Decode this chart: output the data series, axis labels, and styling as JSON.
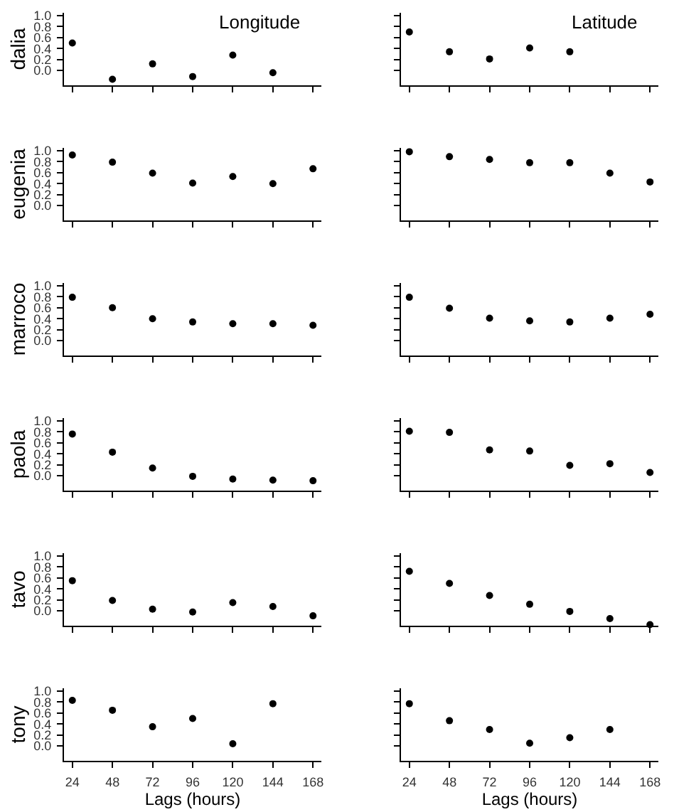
{
  "chart_data": [
    {
      "type": "scatter",
      "title": "Longitude",
      "ylabel": "dalia",
      "x": [
        24,
        48,
        72,
        96,
        120,
        144
      ],
      "values": [
        0.5,
        -0.16,
        0.12,
        -0.11,
        0.28,
        -0.04
      ],
      "color": "#000000",
      "marker": "circle",
      "xlim": [
        19,
        173
      ],
      "xticks": [
        24,
        48,
        72,
        96,
        120,
        144,
        168
      ],
      "ylim": [
        -0.27,
        1.05
      ],
      "yticks": [
        {
          "value": 0,
          "label": "0.0"
        },
        {
          "value": 0.2,
          "label": "0.2"
        },
        {
          "value": 0.4,
          "label": "0.4"
        },
        {
          "value": 0.6,
          "label": "0.6"
        },
        {
          "value": 0.8,
          "label": "0.8"
        },
        {
          "value": 1,
          "label": "1.0"
        }
      ],
      "tick_labels": "y"
    },
    {
      "type": "scatter",
      "title": "Latitude",
      "x": [
        24,
        48,
        72,
        96,
        120
      ],
      "values": [
        0.7,
        0.34,
        0.21,
        0.41,
        0.34
      ],
      "color": "#000000",
      "marker": "circle",
      "xlim": [
        19,
        173
      ],
      "xticks": [
        24,
        48,
        72,
        96,
        120,
        144,
        168
      ],
      "ylim": [
        -0.27,
        1.05
      ],
      "yticks": [
        0,
        0.2,
        0.4,
        0.6,
        0.8,
        1
      ],
      "tick_labels": false
    },
    {
      "type": "scatter",
      "ylabel": "eugenia",
      "x": [
        24,
        48,
        72,
        96,
        120,
        144,
        168
      ],
      "values": [
        0.92,
        0.79,
        0.59,
        0.41,
        0.53,
        0.4,
        0.67
      ],
      "color": "#000000",
      "marker": "circle",
      "xlim": [
        19,
        173
      ],
      "xticks": [
        24,
        48,
        72,
        96,
        120,
        144,
        168
      ],
      "ylim": [
        -0.27,
        1.05
      ],
      "yticks": [
        {
          "value": 0,
          "label": "0.0"
        },
        {
          "value": 0.2,
          "label": "0.2"
        },
        {
          "value": 0.4,
          "label": "0.4"
        },
        {
          "value": 0.6,
          "label": "0.6"
        },
        {
          "value": 0.8,
          "label": "0.8"
        },
        {
          "value": 1,
          "label": "1.0"
        }
      ],
      "tick_labels": "y"
    },
    {
      "type": "scatter",
      "x": [
        24,
        48,
        72,
        96,
        120,
        144,
        168
      ],
      "values": [
        0.98,
        0.89,
        0.84,
        0.78,
        0.78,
        0.59,
        0.43
      ],
      "color": "#000000",
      "marker": "circle",
      "xlim": [
        19,
        173
      ],
      "xticks": [
        24,
        48,
        72,
        96,
        120,
        144,
        168
      ],
      "ylim": [
        -0.27,
        1.05
      ],
      "yticks": [
        0,
        0.2,
        0.4,
        0.6,
        0.8,
        1
      ],
      "tick_labels": false
    },
    {
      "type": "scatter",
      "ylabel": "marroco",
      "x": [
        24,
        48,
        72,
        96,
        120,
        144,
        168
      ],
      "values": [
        0.79,
        0.6,
        0.4,
        0.34,
        0.31,
        0.31,
        0.28
      ],
      "color": "#000000",
      "marker": "circle",
      "xlim": [
        19,
        173
      ],
      "xticks": [
        24,
        48,
        72,
        96,
        120,
        144,
        168
      ],
      "ylim": [
        -0.27,
        1.05
      ],
      "yticks": [
        {
          "value": 0,
          "label": "0.0"
        },
        {
          "value": 0.2,
          "label": "0.2"
        },
        {
          "value": 0.4,
          "label": "0.4"
        },
        {
          "value": 0.6,
          "label": "0.6"
        },
        {
          "value": 0.8,
          "label": "0.8"
        },
        {
          "value": 1,
          "label": "1.0"
        }
      ],
      "tick_labels": "y"
    },
    {
      "type": "scatter",
      "x": [
        24,
        48,
        72,
        96,
        120,
        144,
        168
      ],
      "values": [
        0.79,
        0.59,
        0.41,
        0.36,
        0.34,
        0.41,
        0.48
      ],
      "color": "#000000",
      "marker": "circle",
      "xlim": [
        19,
        173
      ],
      "xticks": [
        24,
        48,
        72,
        96,
        120,
        144,
        168
      ],
      "ylim": [
        -0.27,
        1.05
      ],
      "yticks": [
        0,
        0.2,
        0.4,
        0.6,
        0.8,
        1
      ],
      "tick_labels": false
    },
    {
      "type": "scatter",
      "ylabel": "paola",
      "x": [
        24,
        48,
        72,
        96,
        120,
        144,
        168
      ],
      "values": [
        0.76,
        0.43,
        0.14,
        -0.01,
        -0.06,
        -0.08,
        -0.09
      ],
      "color": "#000000",
      "marker": "circle",
      "xlim": [
        19,
        173
      ],
      "xticks": [
        24,
        48,
        72,
        96,
        120,
        144,
        168
      ],
      "ylim": [
        -0.27,
        1.05
      ],
      "yticks": [
        {
          "value": 0,
          "label": "0.0"
        },
        {
          "value": 0.2,
          "label": "0.2"
        },
        {
          "value": 0.4,
          "label": "0.4"
        },
        {
          "value": 0.6,
          "label": "0.6"
        },
        {
          "value": 0.8,
          "label": "0.8"
        },
        {
          "value": 1,
          "label": "1.0"
        }
      ],
      "tick_labels": "y"
    },
    {
      "type": "scatter",
      "x": [
        24,
        48,
        72,
        96,
        120,
        144,
        168
      ],
      "values": [
        0.81,
        0.79,
        0.47,
        0.45,
        0.19,
        0.22,
        0.06
      ],
      "color": "#000000",
      "marker": "circle",
      "xlim": [
        19,
        173
      ],
      "xticks": [
        24,
        48,
        72,
        96,
        120,
        144,
        168
      ],
      "ylim": [
        -0.27,
        1.05
      ],
      "yticks": [
        0,
        0.2,
        0.4,
        0.6,
        0.8,
        1
      ],
      "tick_labels": false
    },
    {
      "type": "scatter",
      "ylabel": "tavo",
      "x": [
        24,
        48,
        72,
        96,
        120,
        144,
        168
      ],
      "values": [
        0.55,
        0.19,
        0.03,
        -0.02,
        0.15,
        0.08,
        -0.09
      ],
      "color": "#000000",
      "marker": "circle",
      "xlim": [
        19,
        173
      ],
      "xticks": [
        24,
        48,
        72,
        96,
        120,
        144,
        168
      ],
      "ylim": [
        -0.27,
        1.05
      ],
      "yticks": [
        {
          "value": 0,
          "label": "0.0"
        },
        {
          "value": 0.2,
          "label": "0.2"
        },
        {
          "value": 0.4,
          "label": "0.4"
        },
        {
          "value": 0.6,
          "label": "0.6"
        },
        {
          "value": 0.8,
          "label": "0.8"
        },
        {
          "value": 1,
          "label": "1.0"
        }
      ],
      "tick_labels": "y"
    },
    {
      "type": "scatter",
      "x": [
        24,
        48,
        72,
        96,
        120,
        144,
        168
      ],
      "values": [
        0.72,
        0.5,
        0.28,
        0.12,
        -0.01,
        -0.14,
        -0.25
      ],
      "color": "#000000",
      "marker": "circle",
      "xlim": [
        19,
        173
      ],
      "xticks": [
        24,
        48,
        72,
        96,
        120,
        144,
        168
      ],
      "ylim": [
        -0.27,
        1.05
      ],
      "yticks": [
        0,
        0.2,
        0.4,
        0.6,
        0.8,
        1
      ],
      "tick_labels": false
    },
    {
      "type": "scatter",
      "ylabel": "tony",
      "xlabel": "Lags (hours)",
      "x": [
        24,
        48,
        72,
        96,
        120,
        144
      ],
      "values": [
        0.83,
        0.65,
        0.35,
        0.5,
        0.04,
        0.77
      ],
      "color": "#000000",
      "marker": "circle",
      "xlim": [
        19,
        173
      ],
      "xticks": [
        24,
        48,
        72,
        96,
        120,
        144,
        168
      ],
      "ylim": [
        -0.27,
        1.05
      ],
      "yticks": [
        {
          "value": 0,
          "label": "0.0"
        },
        {
          "value": 0.2,
          "label": "0.2"
        },
        {
          "value": 0.4,
          "label": "0.4"
        },
        {
          "value": 0.6,
          "label": "0.6"
        },
        {
          "value": 0.8,
          "label": "0.8"
        },
        {
          "value": 1,
          "label": "1.0"
        }
      ]
    },
    {
      "type": "scatter",
      "xlabel": "Lags (hours)",
      "x": [
        24,
        48,
        72,
        96,
        120,
        144
      ],
      "values": [
        0.77,
        0.46,
        0.3,
        0.05,
        0.15,
        0.3
      ],
      "color": "#000000",
      "marker": "circle",
      "xlim": [
        19,
        173
      ],
      "xticks": [
        24,
        48,
        72,
        96,
        120,
        144,
        168
      ],
      "ylim": [
        -0.27,
        1.05
      ],
      "yticks": [
        0,
        0.2,
        0.4,
        0.6,
        0.8,
        1
      ],
      "tick_labels": "x"
    }
  ]
}
